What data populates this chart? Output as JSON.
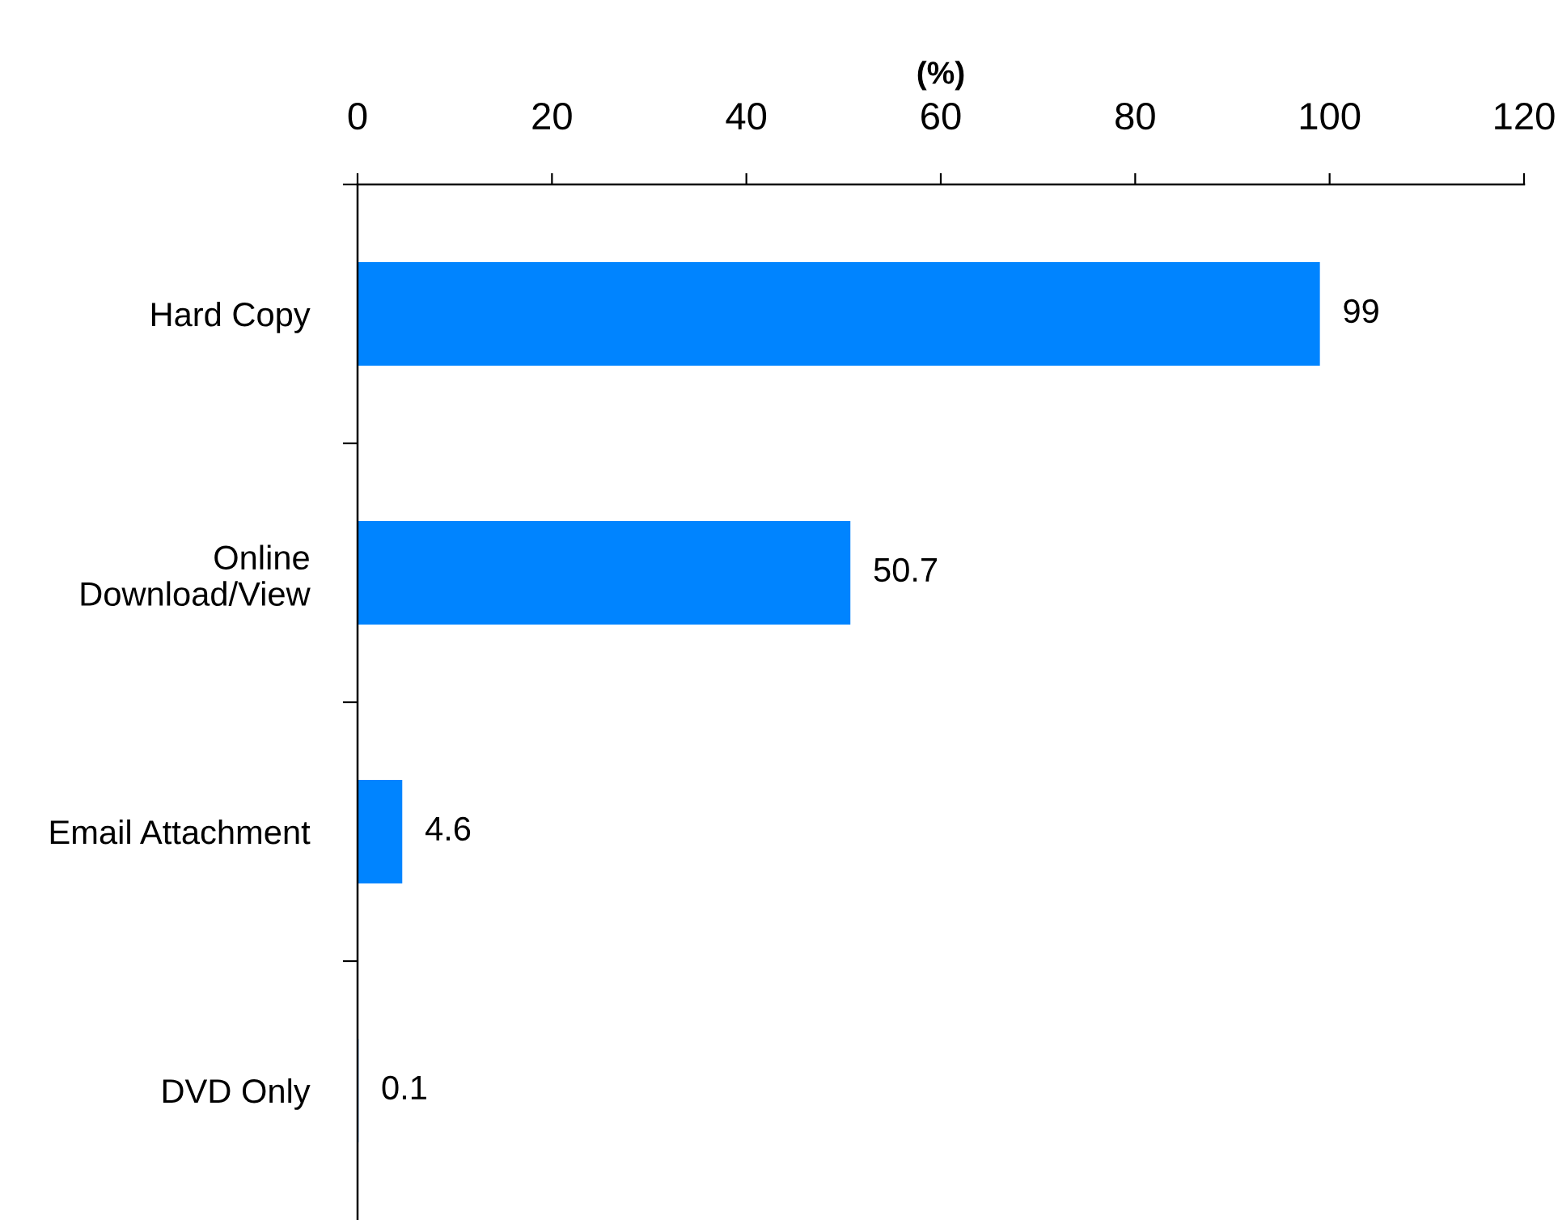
{
  "chart_data": {
    "type": "bar",
    "orientation": "horizontal",
    "xlabel": "(%)",
    "categories": [
      "Hard Copy",
      "Online\nDownload/View",
      "Email Attachment",
      "DVD Only"
    ],
    "values": [
      99,
      50.7,
      4.6,
      0.1
    ],
    "color": "#0084ff",
    "xlim": [
      0,
      120
    ],
    "xticks": [
      0,
      20,
      40,
      60,
      80,
      100,
      120
    ],
    "data_labels": true
  }
}
